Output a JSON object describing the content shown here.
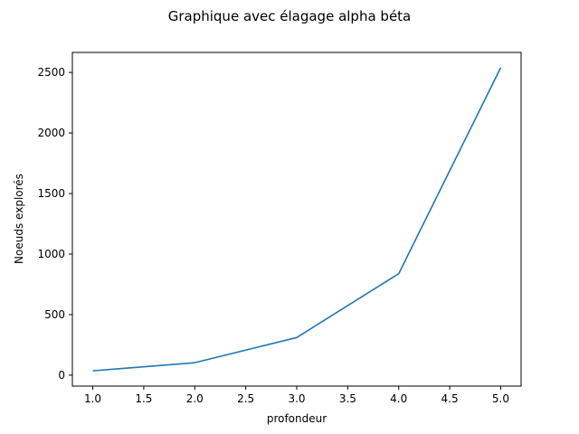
{
  "chart_data": {
    "type": "line",
    "title": "Graphique avec élagage alpha béta",
    "xlabel": "profondeur",
    "ylabel": "Noeuds explorés",
    "x": [
      1.0,
      2.0,
      3.0,
      4.0,
      5.0
    ],
    "series": [
      {
        "values": [
          36,
          103,
          311,
          838,
          2539
        ],
        "color": "#1f77b4"
      }
    ],
    "xlim": [
      0.8,
      5.2
    ],
    "ylim": [
      -90,
      2665
    ],
    "xticks": [
      1.0,
      1.5,
      2.0,
      2.5,
      3.0,
      3.5,
      4.0,
      4.5,
      5.0
    ],
    "xtick_labels": [
      "1.0",
      "1.5",
      "2.0",
      "2.5",
      "3.0",
      "3.5",
      "4.0",
      "4.5",
      "5.0"
    ],
    "yticks": [
      0,
      500,
      1000,
      1500,
      2000,
      2500
    ],
    "ytick_labels": [
      "0",
      "500",
      "1000",
      "1500",
      "2000",
      "2500"
    ],
    "grid": false
  }
}
